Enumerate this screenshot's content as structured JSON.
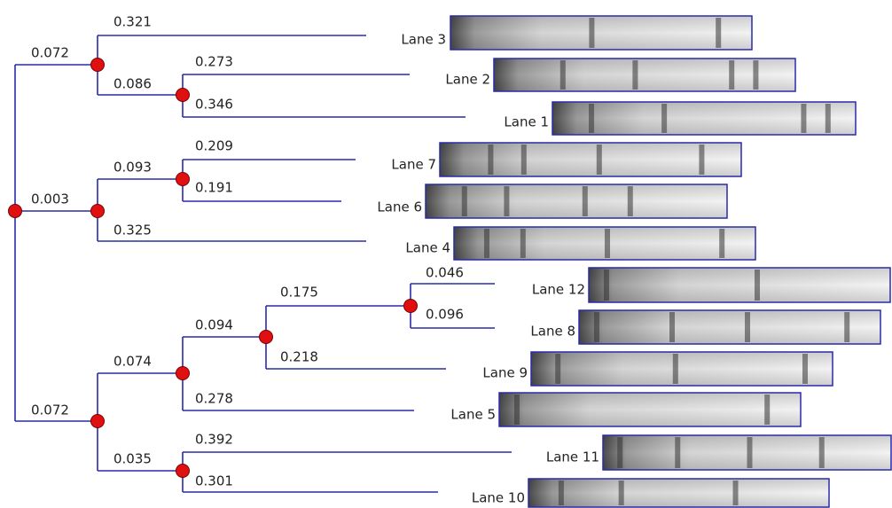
{
  "edges": [
    {
      "label": "0.072"
    },
    {
      "label": "0.321"
    },
    {
      "label": "0.086"
    },
    {
      "label": "0.273"
    },
    {
      "label": "0.346"
    },
    {
      "label": "0.003"
    },
    {
      "label": "0.093"
    },
    {
      "label": "0.209"
    },
    {
      "label": "0.191"
    },
    {
      "label": "0.325"
    },
    {
      "label": "0.072"
    },
    {
      "label": "0.074"
    },
    {
      "label": "0.094"
    },
    {
      "label": "0.175"
    },
    {
      "label": "0.046"
    },
    {
      "label": "0.096"
    },
    {
      "label": "0.218"
    },
    {
      "label": "0.278"
    },
    {
      "label": "0.035"
    },
    {
      "label": "0.392"
    },
    {
      "label": "0.301"
    }
  ],
  "leaves": [
    {
      "label": "Lane 3"
    },
    {
      "label": "Lane 2"
    },
    {
      "label": "Lane 1"
    },
    {
      "label": "Lane 7"
    },
    {
      "label": "Lane 6"
    },
    {
      "label": "Lane 4"
    },
    {
      "label": "Lane 12"
    },
    {
      "label": "Lane 8"
    },
    {
      "label": "Lane 9"
    },
    {
      "label": "Lane 5"
    },
    {
      "label": "Lane 11"
    },
    {
      "label": "Lane 10"
    }
  ]
}
